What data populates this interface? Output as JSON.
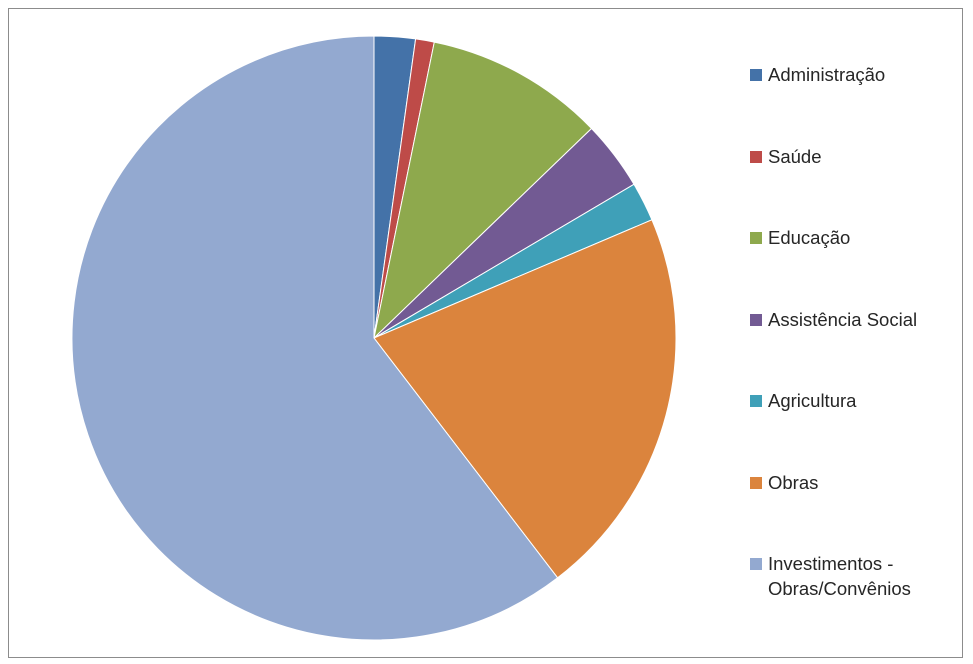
{
  "chart_data": {
    "type": "pie",
    "title": "",
    "legend_position": "right",
    "slices": [
      {
        "label": "Administração",
        "value": 2.2,
        "color": "#4472a8"
      },
      {
        "label": "Saúde",
        "value": 1.0,
        "color": "#be4b48"
      },
      {
        "label": "Educação",
        "value": 9.6,
        "color": "#8ea94d"
      },
      {
        "label": "Assistência Social",
        "value": 3.7,
        "color": "#725a93"
      },
      {
        "label": "Agricultura",
        "value": 2.1,
        "color": "#3fa0b8"
      },
      {
        "label": "Obras",
        "value": 21.0,
        "color": "#db843d"
      },
      {
        "label": "Investimentos - Obras/Convênios",
        "value": 60.4,
        "color": "#93a9d0"
      }
    ]
  }
}
